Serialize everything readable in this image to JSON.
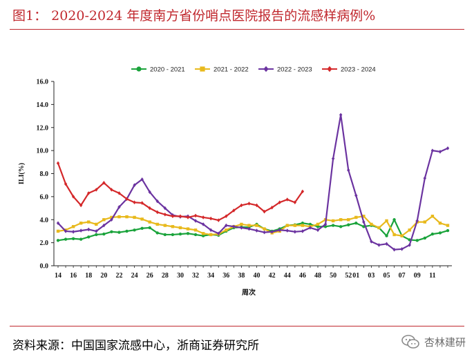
{
  "figure": {
    "title": "图1：  2020-2024 年度南方省份哨点医院报告的流感样病例%",
    "source": "资料来源：中国国家流感中心，浙商证券研究所",
    "watermark": "杏林建研"
  },
  "chart_data": {
    "type": "line",
    "title": "",
    "xlabel": "周次",
    "ylabel": "ILI(%)",
    "ylim": [
      0,
      16
    ],
    "y_ticks": [
      "0.0",
      "2.0",
      "4.0",
      "6.0",
      "8.0",
      "10.0",
      "12.0",
      "14.0",
      "16.0"
    ],
    "x_tick_labels": [
      "14",
      "16",
      "18",
      "20",
      "22",
      "24",
      "26",
      "28",
      "30",
      "32",
      "34",
      "36",
      "38",
      "40",
      "42",
      "44",
      "46",
      "48",
      "50",
      "52",
      "01",
      "03",
      "05",
      "07",
      "09",
      "11"
    ],
    "weeks": [
      "14",
      "15",
      "16",
      "17",
      "18",
      "19",
      "20",
      "21",
      "22",
      "23",
      "24",
      "25",
      "26",
      "27",
      "28",
      "29",
      "30",
      "31",
      "32",
      "33",
      "34",
      "35",
      "36",
      "37",
      "38",
      "39",
      "40",
      "41",
      "42",
      "43",
      "44",
      "45",
      "46",
      "47",
      "48",
      "49",
      "50",
      "51",
      "52",
      "01",
      "02",
      "03",
      "04",
      "05",
      "06",
      "07",
      "08",
      "09",
      "10",
      "11",
      "12",
      "13"
    ],
    "legend_position": "top",
    "series": [
      {
        "name": "2020 - 2021",
        "color": "#1aa33b",
        "marker": "circle",
        "values": [
          2.2,
          2.3,
          2.35,
          2.3,
          2.5,
          2.7,
          2.75,
          2.95,
          2.9,
          3.0,
          3.1,
          3.25,
          3.3,
          2.85,
          2.7,
          2.7,
          2.75,
          2.8,
          2.7,
          2.6,
          2.7,
          2.65,
          3.0,
          3.3,
          3.35,
          3.35,
          3.6,
          3.2,
          3.0,
          3.2,
          3.5,
          3.55,
          3.7,
          3.6,
          3.4,
          3.4,
          3.5,
          3.4,
          3.55,
          3.7,
          3.4,
          3.5,
          3.3,
          2.6,
          4.0,
          2.6,
          2.25,
          2.2,
          2.4,
          2.75,
          2.85,
          3.05
        ]
      },
      {
        "name": "2021 - 2022",
        "color": "#e8b91c",
        "marker": "square",
        "values": [
          3.0,
          3.1,
          3.4,
          3.7,
          3.8,
          3.6,
          4.0,
          4.2,
          4.25,
          4.25,
          4.2,
          4.05,
          3.8,
          3.6,
          3.5,
          3.4,
          3.3,
          3.2,
          3.1,
          2.8,
          2.7,
          2.75,
          3.1,
          3.4,
          3.6,
          3.5,
          3.5,
          3.2,
          2.85,
          3.0,
          3.5,
          3.5,
          3.5,
          3.4,
          3.6,
          4.0,
          3.9,
          4.0,
          4.0,
          4.2,
          4.3,
          3.6,
          3.3,
          3.9,
          2.7,
          2.6,
          3.1,
          3.8,
          3.8,
          4.3,
          3.7,
          3.5
        ]
      },
      {
        "name": "2022 - 2023",
        "color": "#6b33a0",
        "marker": "diamond",
        "values": [
          3.7,
          3.0,
          2.95,
          3.05,
          3.15,
          3.0,
          3.5,
          4.0,
          5.1,
          5.8,
          7.0,
          7.5,
          6.4,
          5.6,
          5.0,
          4.4,
          4.25,
          4.3,
          3.9,
          3.6,
          3.1,
          2.8,
          3.5,
          3.4,
          3.3,
          3.2,
          3.05,
          2.9,
          2.95,
          3.1,
          3.05,
          2.95,
          3.0,
          3.3,
          3.1,
          3.6,
          9.3,
          13.1,
          8.3,
          6.1,
          3.8,
          2.1,
          1.8,
          1.9,
          1.4,
          1.45,
          1.8,
          3.9,
          7.6,
          10.0,
          9.9,
          10.2
        ]
      },
      {
        "name": "2023 - 2024",
        "color": "#d4282a",
        "marker": "diamond",
        "values": [
          8.9,
          7.1,
          6.0,
          5.25,
          6.3,
          6.6,
          7.2,
          6.6,
          6.3,
          5.8,
          5.5,
          5.45,
          5.0,
          4.65,
          4.45,
          4.3,
          4.3,
          4.2,
          4.35,
          4.2,
          4.1,
          3.95,
          4.3,
          4.8,
          5.25,
          5.4,
          5.25,
          4.7,
          5.05,
          5.5,
          5.75,
          5.5,
          6.45
        ]
      }
    ]
  }
}
